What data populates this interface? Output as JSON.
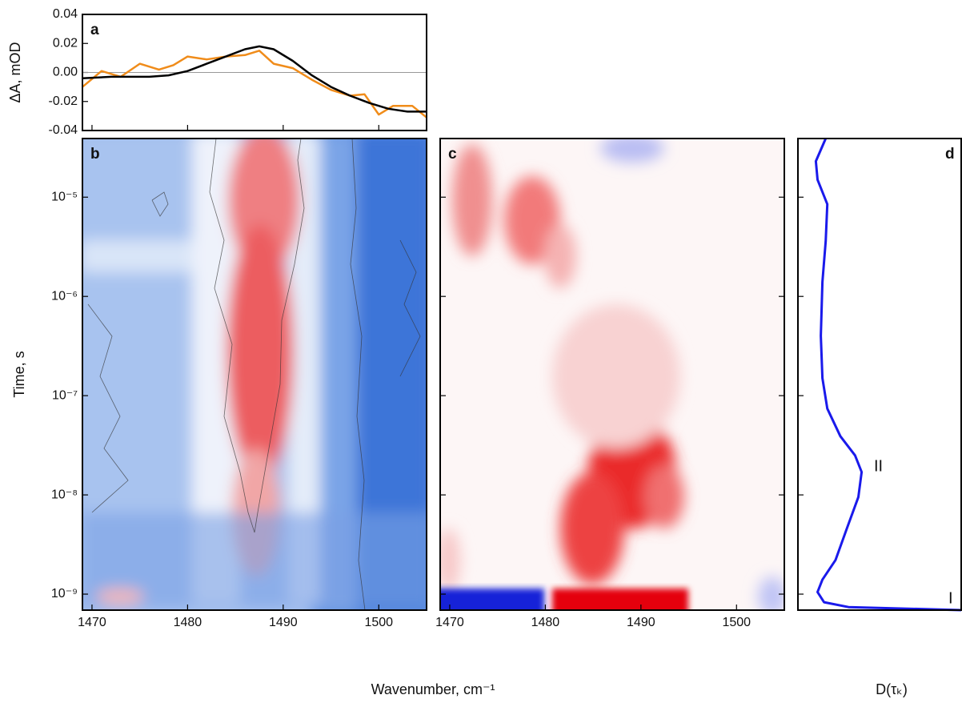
{
  "chart_data": [
    {
      "type": "line",
      "panel_label": "a",
      "ylabel": "ΔA, mOD",
      "xlim": [
        1469,
        1505
      ],
      "ylim": [
        -0.04,
        0.04
      ],
      "xticks": [
        1470,
        1480,
        1490,
        1500
      ],
      "yticks": [
        -0.04,
        -0.02,
        {
          "value": 0,
          "label": "0.00"
        },
        0.02,
        0.04
      ],
      "ytick_labels": true,
      "xtick_labels": false,
      "zero_line": true,
      "series": [
        {
          "color": "#f08c1a",
          "x": [
            1469,
            1471,
            1473,
            1475,
            1477,
            1478.5,
            1480,
            1482,
            1484,
            1486,
            1487.5,
            1489,
            1491,
            1493,
            1495,
            1497,
            1498.5,
            1500,
            1501.5,
            1503.5,
            1505
          ],
          "values": [
            -0.01,
            0.001,
            -0.003,
            0.006,
            0.002,
            0.005,
            0.011,
            0.009,
            0.011,
            0.012,
            0.015,
            0.006,
            0.003,
            -0.005,
            -0.012,
            -0.016,
            -0.015,
            -0.029,
            -0.023,
            -0.023,
            -0.031
          ]
        },
        {
          "color": "#000000",
          "x": [
            1469,
            1472,
            1476,
            1478,
            1480,
            1482,
            1484,
            1486,
            1487.5,
            1489,
            1491,
            1493,
            1495,
            1497,
            1499,
            1501,
            1503,
            1505
          ],
          "values": [
            -0.004,
            -0.003,
            -0.003,
            -0.002,
            0.001,
            0.006,
            0.011,
            0.016,
            0.018,
            0.016,
            0.008,
            -0.002,
            -0.01,
            -0.016,
            -0.021,
            -0.025,
            -0.027,
            -0.027
          ]
        }
      ]
    },
    {
      "type": "heatmap",
      "panel_label": "b",
      "ylabel": "Time, s",
      "xlabel": "Wavenumber, cm⁻¹",
      "xlim": [
        1469,
        1505
      ],
      "ylim": [
        6.9e-10,
        3.9e-05
      ],
      "ylog": true,
      "xticks": [
        1470,
        1480,
        1490,
        1500
      ],
      "yticks": [
        {
          "value": 1e-09,
          "label": "10⁻⁹"
        },
        {
          "value": 1e-08,
          "label": "10⁻⁸"
        },
        {
          "value": 1e-07,
          "label": "10⁻⁷"
        },
        {
          "value": 1e-06,
          "label": "10⁻⁶"
        },
        {
          "value": 1e-05,
          "label": "10⁻⁵"
        }
      ],
      "ytick_labels": true,
      "xtick_labels": true
    },
    {
      "type": "heatmap",
      "panel_label": "c",
      "xlim": [
        1469,
        1505
      ],
      "ylim": [
        6.9e-10,
        3.9e-05
      ],
      "ylog": true,
      "xticks": [
        1470,
        1480,
        1490,
        1500
      ],
      "yticks": [
        1e-09,
        1e-08,
        1e-07,
        1e-06,
        1e-05
      ],
      "ytick_labels": false,
      "xtick_labels": true
    },
    {
      "type": "line",
      "orientation": "vertical",
      "panel_label": "d",
      "xlabel": "D(τₖ)",
      "xlim": [
        0,
        1
      ],
      "ylim": [
        6.9e-10,
        3.9e-05
      ],
      "ylog": true,
      "yticks": [
        1e-09,
        1e-08,
        1e-07,
        1e-06,
        1e-05
      ],
      "ytick_labels": false,
      "xtick_labels": false,
      "annotations": [
        "II",
        "I"
      ],
      "series": [
        {
          "color": "#1a1aeb",
          "x": [
            3.9e-05,
            2.3e-05,
            1.5e-05,
            8.5e-06,
            3.6e-06,
            1.4e-06,
            4e-07,
            1.5e-07,
            7.4e-08,
            3.9e-08,
            2.5e-08,
            1.7e-08,
            9.5e-09,
            4.6e-09,
            2.2e-09,
            1.4e-09,
            1.05e-09,
            8.3e-10,
            7.4e-10,
            6.9e-10
          ],
          "values": [
            0.17,
            0.11,
            0.12,
            0.18,
            0.17,
            0.15,
            0.14,
            0.15,
            0.18,
            0.26,
            0.35,
            0.39,
            0.37,
            0.3,
            0.23,
            0.15,
            0.12,
            0.16,
            0.31,
            1.0
          ]
        }
      ]
    }
  ]
}
